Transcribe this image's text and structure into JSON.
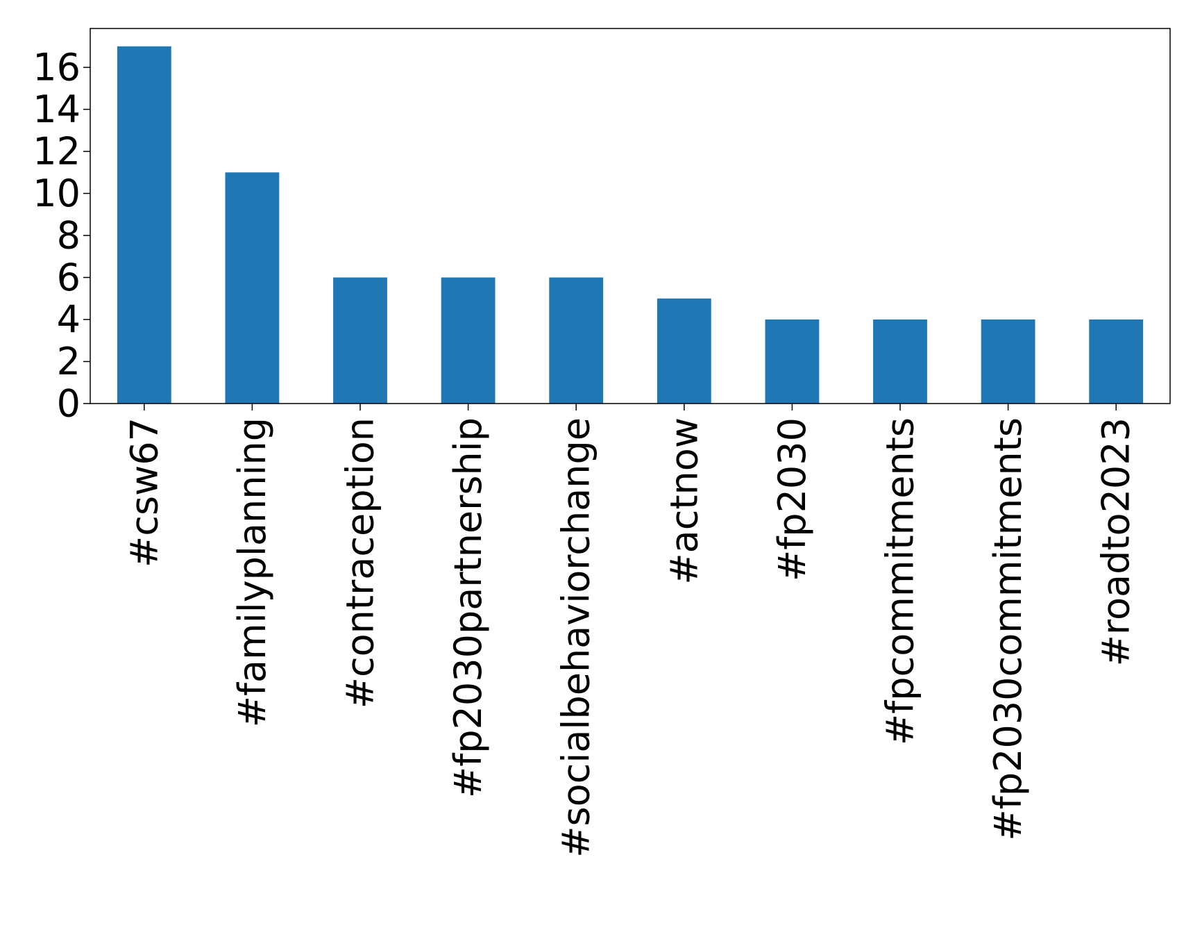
{
  "chart_data": {
    "type": "bar",
    "title": "",
    "xlabel": "",
    "ylabel": "",
    "categories": [
      "#csw67",
      "#familyplanning",
      "#contraception",
      "#fp2030partnership",
      "#socialbehaviorchange",
      "#actnow",
      "#fp2030",
      "#fpcommitments",
      "#fp2030commitments",
      "#roadto2023"
    ],
    "values": [
      17,
      11,
      6,
      6,
      6,
      5,
      4,
      4,
      4,
      4
    ],
    "ylim": [
      0,
      17.85
    ],
    "yticks": [
      0,
      2,
      4,
      6,
      8,
      10,
      12,
      14,
      16
    ],
    "ytick_labels": [
      "0",
      "2",
      "4",
      "6",
      "8",
      "10",
      "12",
      "14",
      "16"
    ],
    "grid": false,
    "legend": "none",
    "bar_color": "#1f77b4"
  }
}
